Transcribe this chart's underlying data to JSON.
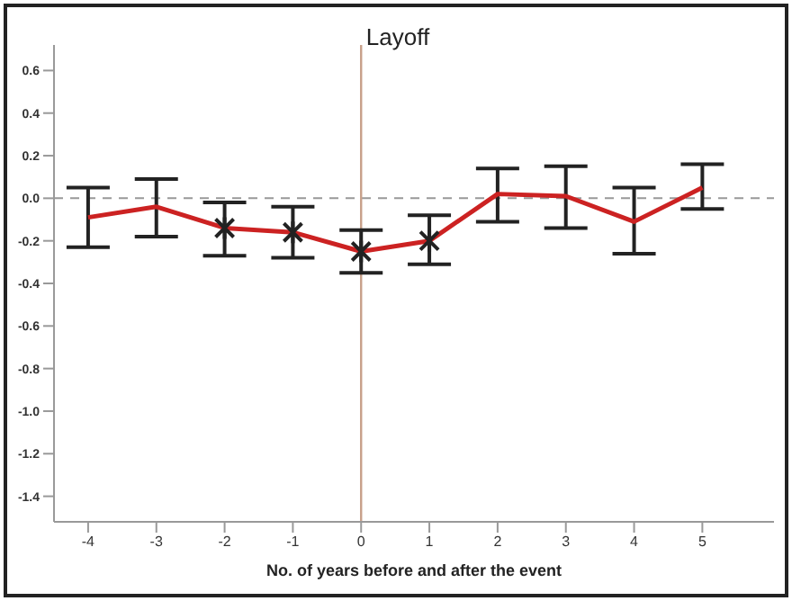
{
  "chart_data": {
    "type": "line",
    "title": "Layoff",
    "xlabel": "No. of years before and after the event",
    "x": [
      -4,
      -3,
      -2,
      -1,
      0,
      1,
      2,
      3,
      4,
      5
    ],
    "series": [
      {
        "type": "line",
        "color": "#cc2222",
        "marker": "none",
        "values": [
          -0.09,
          -0.04,
          -0.14,
          -0.16,
          -0.25,
          -0.2,
          0.02,
          0.01,
          -0.11,
          0.05
        ],
        "errors": [
          [
            -0.23,
            0.05
          ],
          [
            -0.18,
            0.09
          ],
          [
            -0.27,
            -0.02
          ],
          [
            -0.28,
            -0.04
          ],
          [
            -0.35,
            -0.15
          ],
          [
            -0.31,
            -0.08
          ],
          [
            -0.11,
            0.14
          ],
          [
            -0.14,
            0.15
          ],
          [
            -0.26,
            0.05
          ],
          [
            -0.05,
            0.16
          ]
        ]
      },
      {
        "type": "scatter",
        "color": "#222222",
        "marker": "cross",
        "x": [
          -2,
          -1,
          0,
          1
        ],
        "values": [
          -0.14,
          -0.16,
          -0.25,
          -0.2
        ]
      }
    ],
    "xlim": [
      -4.5,
      6.05
    ],
    "ylim": [
      -1.52,
      0.72
    ],
    "xticks": [
      -4,
      -3,
      -2,
      -1,
      0,
      1,
      2,
      3,
      4,
      5
    ],
    "yticks": [
      0.6,
      0.4,
      0.2,
      {
        "value": 0,
        "label": "0.0"
      },
      -0.2,
      -0.4,
      -0.6,
      -0.8,
      {
        "value": -1,
        "label": "-1.0"
      },
      -1.2,
      -1.4
    ],
    "ref_lines": [
      {
        "axis": "y",
        "value": 0,
        "color": "#999999",
        "line_style": "dashed"
      },
      {
        "axis": "x",
        "value": 0,
        "color": "#c8a08a",
        "line_style": "solid"
      }
    ],
    "grid": false
  }
}
